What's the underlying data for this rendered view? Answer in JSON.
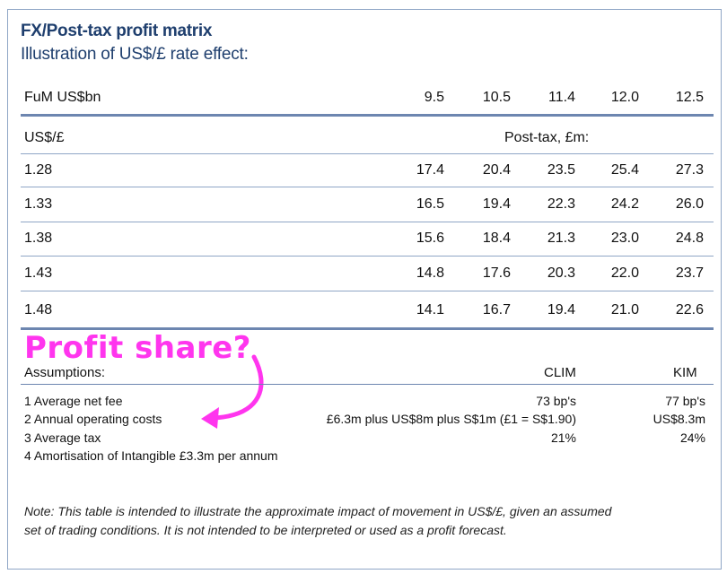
{
  "title": "FX/Post-tax profit matrix",
  "subtitle": "Illustration of US$/£ rate effect:",
  "header": {
    "label": "FuM US$bn",
    "fum": [
      "9.5",
      "10.5",
      "11.4",
      "12.0",
      "12.5"
    ]
  },
  "subheader": {
    "label": "US$/£",
    "unit": "Post-tax, £m:"
  },
  "rows": [
    {
      "rate": "1.28",
      "values": [
        "17.4",
        "20.4",
        "23.5",
        "25.4",
        "27.3"
      ]
    },
    {
      "rate": "1.33",
      "values": [
        "16.5",
        "19.4",
        "22.3",
        "24.2",
        "26.0"
      ]
    },
    {
      "rate": "1.38",
      "values": [
        "15.6",
        "18.4",
        "21.3",
        "23.0",
        "24.8"
      ]
    },
    {
      "rate": "1.43",
      "values": [
        "14.8",
        "17.6",
        "20.3",
        "22.0",
        "23.7"
      ]
    },
    {
      "rate": "1.48",
      "values": [
        "14.1",
        "16.7",
        "19.4",
        "21.0",
        "22.6"
      ]
    }
  ],
  "annotation": {
    "text": "Profit share?",
    "color": "#ff35ee"
  },
  "assumptions": {
    "heading": "Assumptions:",
    "col1": "CLIM",
    "col2": "KIM",
    "items": [
      {
        "label": "1 Average net fee",
        "clim": "73 bp's",
        "kim": "77 bp's"
      },
      {
        "label": "2 Annual operating costs",
        "clim": "£6.3m plus US$8m plus S$1m (£1 = S$1.90)",
        "kim": "US$8.3m"
      },
      {
        "label": "3 Average tax",
        "clim": "21%",
        "kim": "24%"
      },
      {
        "label": "4 Amortisation of Intangible £3.3m per annum",
        "clim": "",
        "kim": ""
      }
    ]
  },
  "note": {
    "line1": "Note: This table is intended to illustrate the approximate impact of movement in US$/£, given an assumed",
    "line2": "set of trading conditions. It is not intended to be interpreted or used as a profit forecast."
  }
}
